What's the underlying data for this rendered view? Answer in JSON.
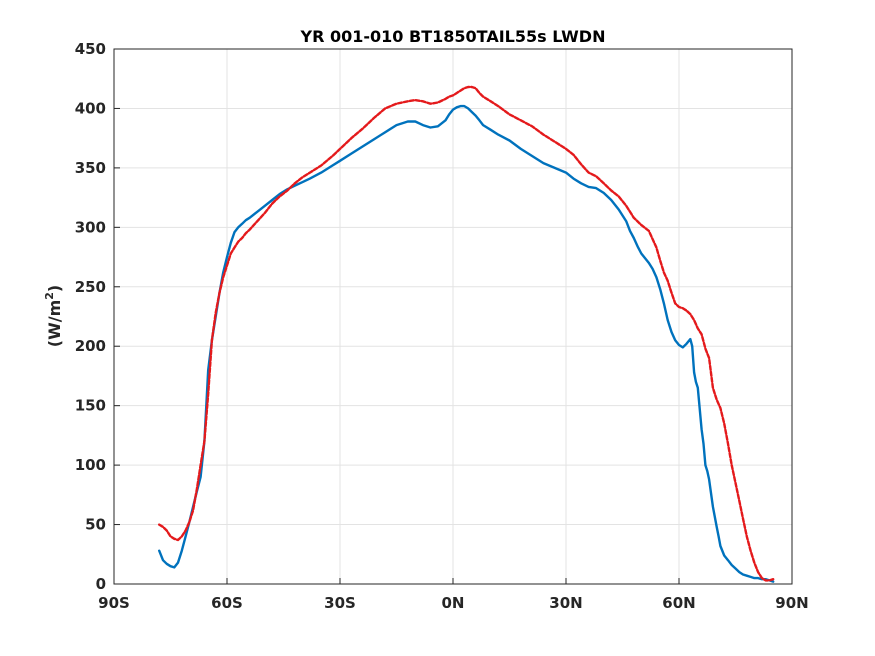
{
  "chart_data": {
    "type": "line",
    "title": "YR 001-010 BT1850TAIL55s LWDN",
    "ylabel_main": "(W/m",
    "ylabel_sup": "2",
    "ylabel_close": ")",
    "xlabel": "",
    "xlim": [
      -90,
      90
    ],
    "ylim": [
      0,
      450
    ],
    "xticks": [
      -90,
      -60,
      -30,
      0,
      30,
      60,
      90
    ],
    "xtick_labels": [
      "90S",
      "60S",
      "30S",
      "0N",
      "30N",
      "60N",
      "90N"
    ],
    "yticks": [
      0,
      50,
      100,
      150,
      200,
      250,
      300,
      350,
      400,
      450
    ],
    "ytick_labels": [
      "0",
      "50",
      "100",
      "150",
      "200",
      "250",
      "300",
      "350",
      "400",
      "450"
    ],
    "grid": true,
    "series": [
      {
        "color": "#0072BD",
        "style": "solid",
        "x": [
          -78,
          -77,
          -76,
          -75,
          -74,
          -73,
          -72,
          -71,
          -70,
          -69,
          -68,
          -67,
          -66,
          -65,
          -64,
          -63,
          -62,
          -61,
          -60,
          -59,
          -58,
          -57,
          -56,
          -55,
          -54,
          -52,
          -50,
          -48,
          -46,
          -44,
          -42,
          -40,
          -38,
          -35,
          -32,
          -30,
          -27,
          -24,
          -21,
          -18,
          -15,
          -12,
          -10,
          -8,
          -6,
          -4,
          -2,
          -1,
          0,
          1,
          2,
          3,
          4,
          5,
          6,
          7,
          8,
          10,
          12,
          15,
          18,
          21,
          24,
          27,
          30,
          32,
          34,
          36,
          38,
          40,
          42,
          44,
          46,
          47,
          48,
          49,
          50,
          51,
          52,
          53,
          54,
          55,
          56,
          57,
          58,
          59,
          60,
          61,
          62,
          63,
          63.5,
          64,
          64.5,
          65,
          66,
          66.5,
          67,
          67.5,
          68,
          69,
          70,
          70.5,
          71,
          72,
          73,
          74,
          75,
          76,
          77,
          78,
          79,
          80,
          81,
          82,
          83,
          84,
          85
        ],
        "y": [
          28,
          20,
          17,
          15,
          14,
          18,
          28,
          40,
          52,
          65,
          78,
          90,
          120,
          180,
          205,
          225,
          245,
          262,
          275,
          287,
          296,
          300,
          303,
          306,
          308,
          313,
          318,
          323,
          328,
          332,
          335,
          338,
          341,
          346,
          352,
          356,
          362,
          368,
          374,
          380,
          386,
          389,
          389,
          386,
          384,
          385,
          390,
          395,
          399,
          401,
          402,
          402,
          400,
          397,
          394,
          390,
          386,
          382,
          378,
          373,
          366,
          360,
          354,
          350,
          346,
          341,
          337,
          334,
          333,
          329,
          323,
          315,
          305,
          297,
          291,
          284,
          278,
          274,
          270,
          265,
          258,
          248,
          236,
          222,
          212,
          205,
          201,
          199,
          202,
          206,
          200,
          178,
          170,
          165,
          130,
          118,
          100,
          95,
          88,
          65,
          48,
          40,
          32,
          24,
          20,
          16,
          13,
          10,
          8,
          7,
          6,
          5,
          5,
          4,
          4,
          3,
          2
        ]
      },
      {
        "color": "#E41A1C",
        "style": "dashed",
        "x": [
          -78,
          -77,
          -76,
          -75,
          -74,
          -73,
          -72,
          -71,
          -70,
          -69,
          -68,
          -67,
          -66,
          -65,
          -64,
          -63,
          -62,
          -61,
          -60,
          -59,
          -58,
          -57,
          -56,
          -55,
          -54,
          -52,
          -50,
          -48,
          -46,
          -44,
          -42,
          -40,
          -38,
          -35,
          -32,
          -30,
          -27,
          -24,
          -21,
          -18,
          -15,
          -12,
          -10,
          -8,
          -6,
          -4,
          -2,
          -1,
          0,
          1,
          2,
          3,
          4,
          5,
          6,
          7,
          8,
          10,
          12,
          15,
          18,
          21,
          24,
          27,
          30,
          32,
          34,
          36,
          38,
          40,
          42,
          44,
          46,
          48,
          50,
          52,
          54,
          55,
          56,
          57,
          58,
          59,
          60,
          61,
          62,
          63,
          64,
          65,
          66,
          67,
          68,
          69,
          70,
          71,
          72,
          73,
          74,
          75,
          76,
          77,
          78,
          79,
          80,
          81,
          82,
          83,
          84,
          85
        ],
        "y": [
          50,
          48,
          45,
          40,
          38,
          37,
          40,
          45,
          52,
          62,
          80,
          100,
          120,
          160,
          205,
          228,
          245,
          258,
          268,
          278,
          283,
          288,
          291,
          295,
          298,
          305,
          312,
          320,
          326,
          331,
          337,
          342,
          346,
          352,
          360,
          366,
          375,
          383,
          392,
          400,
          404,
          406,
          407,
          406,
          404,
          405,
          408,
          410,
          411,
          413,
          415,
          417,
          418,
          418,
          417,
          413,
          410,
          406,
          402,
          395,
          390,
          385,
          378,
          372,
          366,
          361,
          353,
          346,
          343,
          337,
          331,
          326,
          318,
          308,
          302,
          297,
          283,
          272,
          262,
          255,
          245,
          236,
          233,
          232,
          230,
          227,
          222,
          215,
          210,
          198,
          190,
          165,
          155,
          148,
          135,
          118,
          100,
          85,
          70,
          55,
          40,
          28,
          18,
          10,
          5,
          3,
          3,
          4
        ]
      }
    ]
  }
}
